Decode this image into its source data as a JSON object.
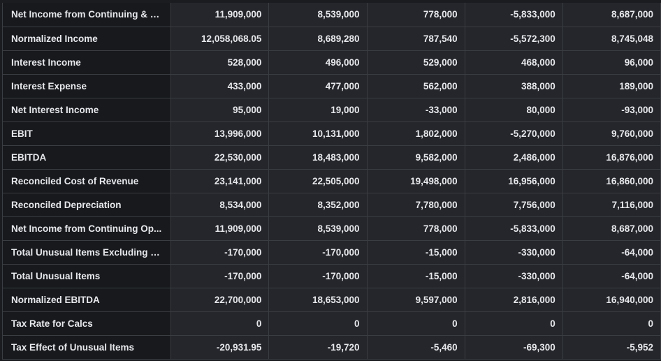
{
  "table": {
    "rows": [
      {
        "label": "Net Income from Continuing & D...",
        "values": [
          "11,909,000",
          "8,539,000",
          "778,000",
          "-5,833,000",
          "8,687,000"
        ]
      },
      {
        "label": "Normalized Income",
        "values": [
          "12,058,068.05",
          "8,689,280",
          "787,540",
          "-5,572,300",
          "8,745,048"
        ]
      },
      {
        "label": "Interest Income",
        "values": [
          "528,000",
          "496,000",
          "529,000",
          "468,000",
          "96,000"
        ]
      },
      {
        "label": "Interest Expense",
        "values": [
          "433,000",
          "477,000",
          "562,000",
          "388,000",
          "189,000"
        ]
      },
      {
        "label": "Net Interest Income",
        "values": [
          "95,000",
          "19,000",
          "-33,000",
          "80,000",
          "-93,000"
        ]
      },
      {
        "label": "EBIT",
        "values": [
          "13,996,000",
          "10,131,000",
          "1,802,000",
          "-5,270,000",
          "9,760,000"
        ]
      },
      {
        "label": "EBITDA",
        "values": [
          "22,530,000",
          "18,483,000",
          "9,582,000",
          "2,486,000",
          "16,876,000"
        ]
      },
      {
        "label": "Reconciled Cost of Revenue",
        "values": [
          "23,141,000",
          "22,505,000",
          "19,498,000",
          "16,956,000",
          "16,860,000"
        ]
      },
      {
        "label": "Reconciled Depreciation",
        "values": [
          "8,534,000",
          "8,352,000",
          "7,780,000",
          "7,756,000",
          "7,116,000"
        ]
      },
      {
        "label": "Net Income from Continuing Op...",
        "values": [
          "11,909,000",
          "8,539,000",
          "778,000",
          "-5,833,000",
          "8,687,000"
        ]
      },
      {
        "label": "Total Unusual Items Excluding G...",
        "values": [
          "-170,000",
          "-170,000",
          "-15,000",
          "-330,000",
          "-64,000"
        ]
      },
      {
        "label": "Total Unusual Items",
        "values": [
          "-170,000",
          "-170,000",
          "-15,000",
          "-330,000",
          "-64,000"
        ]
      },
      {
        "label": "Normalized EBITDA",
        "values": [
          "22,700,000",
          "18,653,000",
          "9,597,000",
          "2,816,000",
          "16,940,000"
        ]
      },
      {
        "label": "Tax Rate for Calcs",
        "values": [
          "0",
          "0",
          "0",
          "0",
          "0"
        ]
      },
      {
        "label": "Tax Effect of Unusual Items",
        "values": [
          "-20,931.95",
          "-19,720",
          "-5,460",
          "-69,300",
          "-5,952"
        ]
      }
    ]
  },
  "colors": {
    "background": "#1a1c20",
    "label_cell": "#17191c",
    "value_cell": "#24262b",
    "border": "#3a3d42",
    "text": "#e6e8eb"
  }
}
